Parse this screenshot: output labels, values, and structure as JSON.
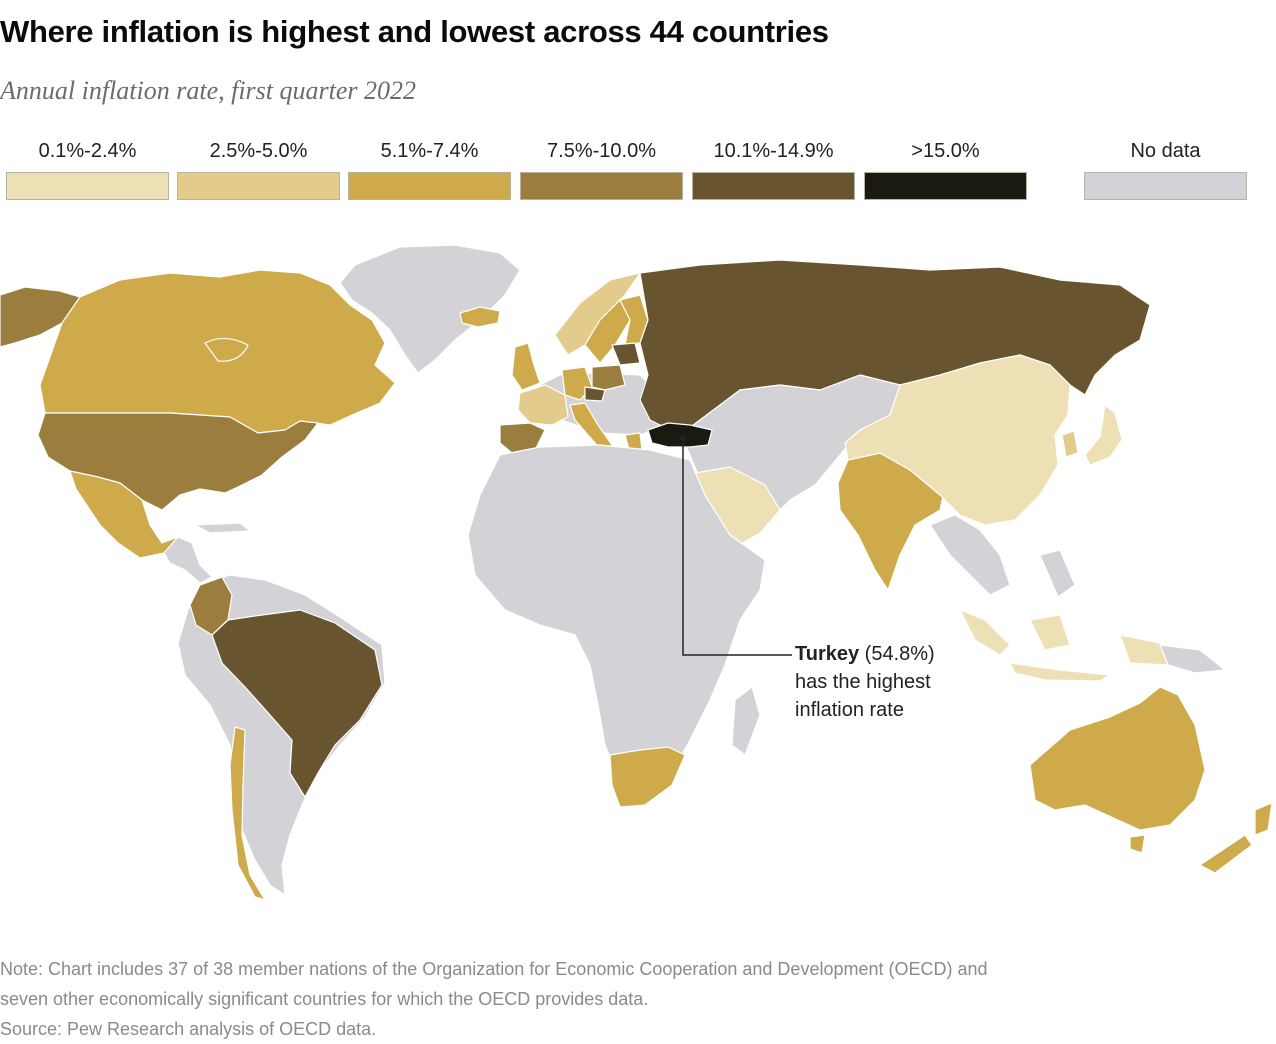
{
  "title": "Where inflation is highest and lowest across 44 countries",
  "subtitle": "Annual inflation rate, first quarter 2022",
  "legend": [
    {
      "label": "0.1%-2.4%",
      "color": "#ede0b4"
    },
    {
      "label": "2.5%-5.0%",
      "color": "#e3cb8b"
    },
    {
      "label": "5.1%-7.4%",
      "color": "#ceaa4b"
    },
    {
      "label": "7.5%-10.0%",
      "color": "#9b7d3e"
    },
    {
      "label": "10.1%-14.9%",
      "color": "#695430"
    },
    {
      "label": ">15.0%",
      "color": "#1a1a12"
    },
    {
      "label": "No data",
      "color": "#d3d3d7"
    }
  ],
  "countries": [
    {
      "name": "Canada",
      "bin": "5.1%-7.4%",
      "color": "#ceaa4b"
    },
    {
      "name": "Alaska (United States)",
      "bin": "7.5%-10.0%",
      "color": "#9b7d3e"
    },
    {
      "name": "United States",
      "bin": "7.5%-10.0%",
      "color": "#9b7d3e"
    },
    {
      "name": "Mexico",
      "bin": "5.1%-7.4%",
      "color": "#ceaa4b"
    },
    {
      "name": "Colombia",
      "bin": "7.5%-10.0%",
      "color": "#9b7d3e"
    },
    {
      "name": "Brazil",
      "bin": "10.1%-14.9%",
      "color": "#695430"
    },
    {
      "name": "Chile",
      "bin": "5.1%-7.4%",
      "color": "#ceaa4b"
    },
    {
      "name": "Greenland",
      "bin": "No data",
      "color": "#d3d3d7"
    },
    {
      "name": "Iceland",
      "bin": "5.1%-7.4%",
      "color": "#ceaa4b"
    },
    {
      "name": "Russia",
      "bin": "10.1%-14.9%",
      "color": "#695430"
    },
    {
      "name": "China",
      "bin": "0.1%-2.4%",
      "color": "#ede0b4"
    },
    {
      "name": "Japan",
      "bin": "0.1%-2.4%",
      "color": "#ede0b4"
    },
    {
      "name": "South Korea",
      "bin": "2.5%-5.0%",
      "color": "#e3cb8b"
    },
    {
      "name": "India",
      "bin": "5.1%-7.4%",
      "color": "#ceaa4b"
    },
    {
      "name": "Saudi Arabia",
      "bin": "0.1%-2.4%",
      "color": "#ede0b4"
    },
    {
      "name": "Turkey",
      "bin": ">15.0%",
      "color": "#1a1a12"
    },
    {
      "name": "Spain",
      "bin": "7.5%-10.0%",
      "color": "#9b7d3e"
    },
    {
      "name": "France",
      "bin": "2.5%-5.0%",
      "color": "#e3cb8b"
    },
    {
      "name": "United Kingdom",
      "bin": "5.1%-7.4%",
      "color": "#ceaa4b"
    },
    {
      "name": "Germany",
      "bin": "5.1%-7.4%",
      "color": "#ceaa4b"
    },
    {
      "name": "Poland",
      "bin": "7.5%-10.0%",
      "color": "#9b7d3e"
    },
    {
      "name": "Czech Republic",
      "bin": "10.1%-14.9%",
      "color": "#695430"
    },
    {
      "name": "Italy",
      "bin": "5.1%-7.4%",
      "color": "#ceaa4b"
    },
    {
      "name": "Norway",
      "bin": "2.5%-5.0%",
      "color": "#e3cb8b"
    },
    {
      "name": "Sweden",
      "bin": "5.1%-7.4%",
      "color": "#ceaa4b"
    },
    {
      "name": "Finland",
      "bin": "5.1%-7.4%",
      "color": "#ceaa4b"
    },
    {
      "name": "Baltic states",
      "bin": "10.1%-14.9%",
      "color": "#695430"
    },
    {
      "name": "Greece",
      "bin": "5.1%-7.4%",
      "color": "#ceaa4b"
    },
    {
      "name": "Indonesia",
      "bin": "0.1%-2.4%",
      "color": "#ede0b4"
    },
    {
      "name": "Australia",
      "bin": "5.1%-7.4%",
      "color": "#ceaa4b"
    },
    {
      "name": "New Zealand",
      "bin": "5.1%-7.4%",
      "color": "#ceaa4b"
    },
    {
      "name": "South Africa",
      "bin": "5.1%-7.4%",
      "color": "#ceaa4b"
    },
    {
      "name": "Africa (other)",
      "bin": "No data",
      "color": "#d3d3d7"
    }
  ],
  "callout": {
    "country": "Turkey",
    "value": "(54.8%)",
    "line1": "has the highest",
    "line2": "inflation rate"
  },
  "note_line1": "Note: Chart includes 37 of 38 member nations of the Organization for Economic Cooperation and Development (OECD) and",
  "note_line2": "seven other economically significant countries for which the OECD provides data.",
  "source": "Source: Pew Research analysis of OECD data."
}
